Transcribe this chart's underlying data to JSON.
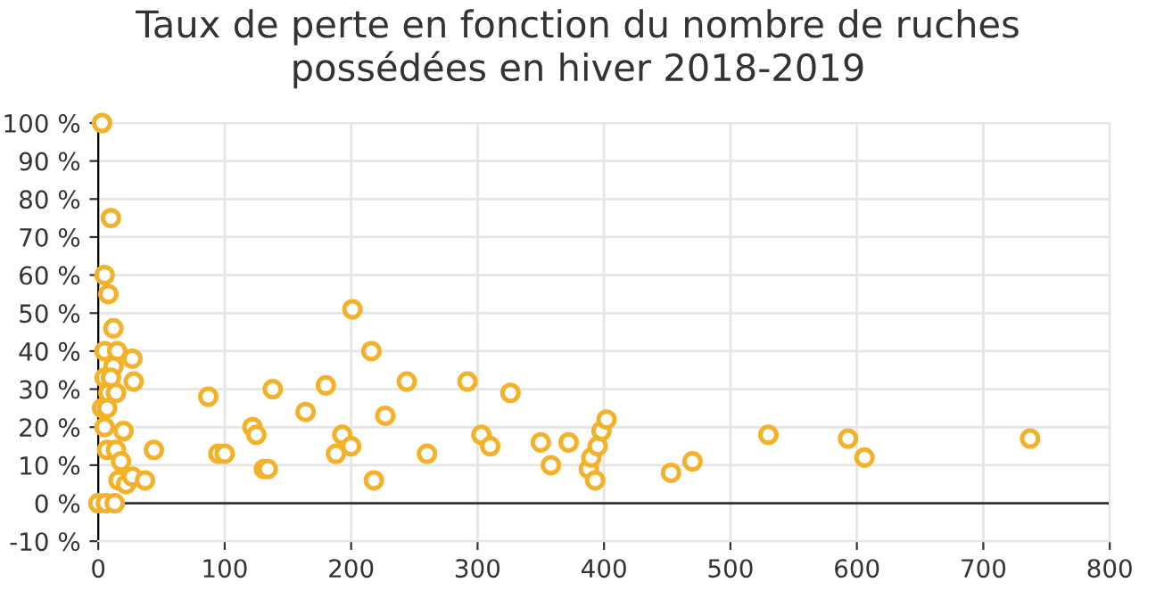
{
  "chart_data": {
    "type": "scatter",
    "title": "Taux de perte en fonction du nombre de ruches\npossédées en hiver 2018-2019",
    "series": [
      {
        "color": "#f4b12a",
        "x": [
          3,
          10,
          5,
          8,
          12,
          5,
          15,
          27,
          12,
          5,
          10,
          28,
          8,
          14,
          3,
          7,
          5,
          20,
          7,
          14,
          18,
          44,
          16,
          22,
          27,
          37,
          0,
          6,
          13,
          87,
          95,
          100,
          122,
          125,
          131,
          134,
          138,
          164,
          180,
          188,
          193,
          200,
          201,
          216,
          218,
          227,
          244,
          260,
          292,
          303,
          310,
          326,
          350,
          358,
          372,
          388,
          390,
          393,
          395,
          398,
          402,
          453,
          470,
          530,
          593,
          606,
          737
        ],
        "values": [
          100,
          75,
          60,
          55,
          46,
          40,
          40,
          38,
          36,
          33,
          33,
          32,
          29,
          29,
          25,
          25,
          20,
          19,
          14,
          14,
          11,
          14,
          6,
          5,
          7,
          6,
          0,
          0,
          0,
          28,
          13,
          13,
          20,
          18,
          9,
          9,
          30,
          24,
          31,
          13,
          18,
          15,
          51,
          40,
          6,
          23,
          32,
          13,
          32,
          18,
          15,
          29,
          16,
          10,
          16,
          9,
          12,
          6,
          15,
          19,
          22,
          8,
          11,
          18,
          17,
          12,
          17
        ]
      }
    ],
    "marker": "circle",
    "grid": true,
    "xlim": [
      0,
      800
    ],
    "xticks": [
      0,
      100,
      200,
      300,
      400,
      500,
      600,
      700,
      800
    ],
    "ylim": [
      -10,
      100
    ],
    "yticks": [
      {
        "value": -10,
        "label": "-10 %"
      },
      {
        "value": 0,
        "label": "0 %"
      },
      {
        "value": 10,
        "label": "10 %"
      },
      {
        "value": 20,
        "label": "20 %"
      },
      {
        "value": 30,
        "label": "30 %"
      },
      {
        "value": 40,
        "label": "40 %"
      },
      {
        "value": 50,
        "label": "50 %"
      },
      {
        "value": 60,
        "label": "60 %"
      },
      {
        "value": 70,
        "label": "70 %"
      },
      {
        "value": 80,
        "label": "80 %"
      },
      {
        "value": 90,
        "label": "90 %"
      },
      {
        "value": 100,
        "label": "100 %"
      }
    ]
  }
}
